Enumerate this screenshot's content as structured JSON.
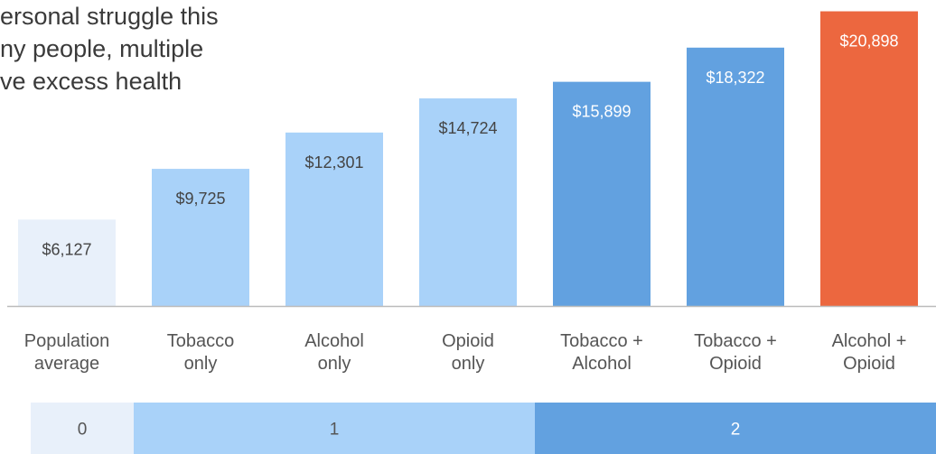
{
  "intro_text": {
    "lines": [
      "ersonal struggle this",
      "ny people, multiple",
      "ve excess health"
    ]
  },
  "chart_data": {
    "type": "bar",
    "title": "",
    "xlabel": "",
    "ylabel": "",
    "ylim": [
      0,
      21700
    ],
    "categories": [
      [
        "Population",
        "average"
      ],
      [
        "Tobacco",
        "only"
      ],
      [
        "Alcohol",
        "only"
      ],
      [
        "Opioid",
        "only"
      ],
      [
        "Tobacco +",
        "Alcohol"
      ],
      [
        "Tobacco +",
        "Opioid"
      ],
      [
        "Alcohol +",
        "Opioid"
      ]
    ],
    "values": [
      6127,
      9725,
      12301,
      14724,
      15899,
      18322,
      20898
    ],
    "value_labels": [
      "$6,127",
      "$9,725",
      "$12,301",
      "$14,724",
      "$15,899",
      "$18,322",
      "$20,898"
    ],
    "bar_colors": [
      "#e8f0fa",
      "#a9d2f9",
      "#a9d2f9",
      "#a9d2f9",
      "#62a1e0",
      "#62a1e0",
      "#ec673f"
    ],
    "label_dark_bars": [
      false,
      false,
      false,
      false,
      true,
      true,
      true
    ],
    "grid": false,
    "legend": "none"
  },
  "substance_count_band": {
    "segments": [
      {
        "label": "0",
        "categories": [
          0,
          0
        ],
        "color": "#e8f0fa",
        "text_color": "#555555"
      },
      {
        "label": "1",
        "categories": [
          1,
          3
        ],
        "color": "#a9d2f9",
        "text_color": "#555555"
      },
      {
        "label": "2",
        "categories": [
          4,
          6
        ],
        "color": "#62a1e0",
        "text_color": "#ffffff"
      }
    ]
  },
  "colors": {
    "baseline": "#bbbbbb"
  }
}
